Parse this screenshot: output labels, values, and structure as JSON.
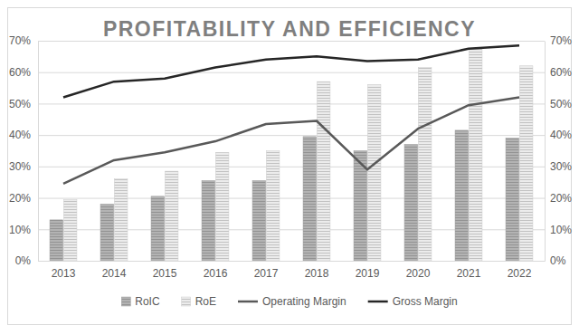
{
  "chart_data": {
    "type": "bar",
    "title": "PROFITABILITY AND EFFICIENCY",
    "categories": [
      "2013",
      "2014",
      "2015",
      "2016",
      "2017",
      "2018",
      "2019",
      "2020",
      "2021",
      "2022"
    ],
    "series": [
      {
        "name": "RoIC",
        "type": "bar",
        "color": "#b3b3b3",
        "values": [
          13,
          18,
          20.5,
          25.5,
          25.5,
          39.5,
          35,
          37,
          41.5,
          39
        ]
      },
      {
        "name": "RoE",
        "type": "bar",
        "color": "#ececec",
        "values": [
          19.5,
          26,
          28.5,
          34.5,
          35,
          57,
          56,
          61.5,
          67.5,
          62
        ]
      },
      {
        "name": "Operating Margin",
        "type": "line",
        "axis": "y2",
        "color": "#595959",
        "values": [
          24.5,
          32,
          34.5,
          38,
          43.5,
          44.5,
          29,
          42,
          49.5,
          52
        ]
      },
      {
        "name": "Gross Margin",
        "type": "line",
        "axis": "y2",
        "color": "#262626",
        "values": [
          52,
          57,
          58,
          61.5,
          64,
          65,
          63.5,
          64,
          67.5,
          68.5
        ]
      }
    ],
    "ylim": [
      0,
      70
    ],
    "yticks": [
      {
        "value": 0,
        "label": "0%"
      },
      {
        "value": 10,
        "label": "10%"
      },
      {
        "value": 20,
        "label": "20%"
      },
      {
        "value": 30,
        "label": "30%"
      },
      {
        "value": 40,
        "label": "40%"
      },
      {
        "value": 50,
        "label": "50%"
      },
      {
        "value": 60,
        "label": "60%"
      },
      {
        "value": 70,
        "label": "70%"
      }
    ],
    "y2lim": [
      0,
      70
    ],
    "y2ticks": [
      {
        "value": 0,
        "label": "0%"
      },
      {
        "value": 10,
        "label": "10%"
      },
      {
        "value": 20,
        "label": "20%"
      },
      {
        "value": 30,
        "label": "30%"
      },
      {
        "value": 40,
        "label": "40%"
      },
      {
        "value": 50,
        "label": "50%"
      },
      {
        "value": 60,
        "label": "60%"
      },
      {
        "value": 70,
        "label": "70%"
      }
    ],
    "grid": true,
    "legend": "bottom"
  }
}
